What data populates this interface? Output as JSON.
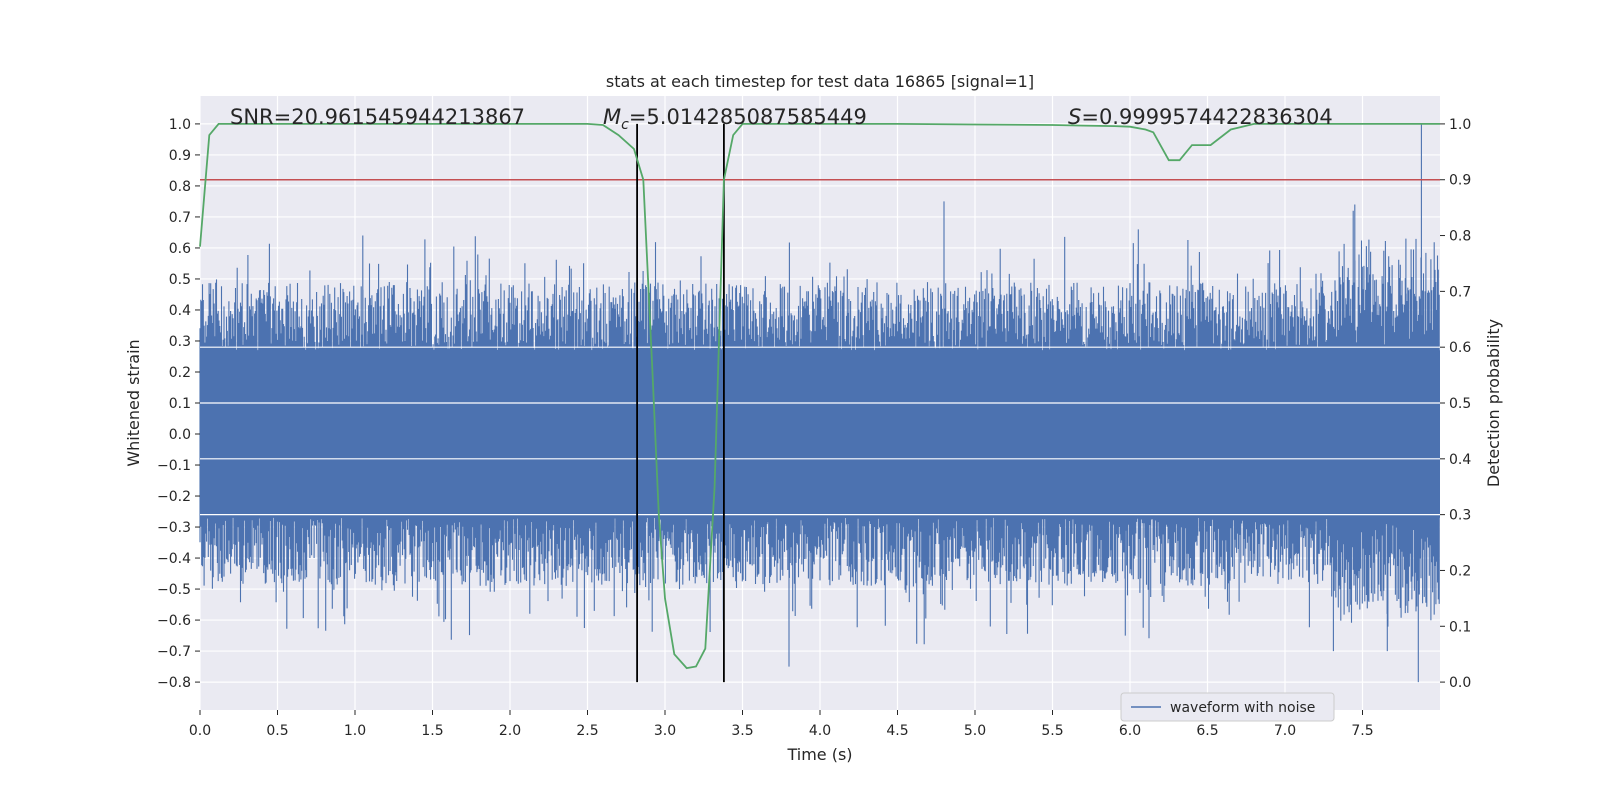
{
  "chart_data": {
    "type": "line",
    "title": "stats at each timestep for test data 16865 [signal=1]",
    "xlabel": "Time (s)",
    "ylabel": "Whitened strain",
    "y2label": "Detection probability",
    "xlim": [
      0.0,
      8.0
    ],
    "ylim": [
      -0.89,
      1.09
    ],
    "y2lim": [
      -0.05,
      1.05
    ],
    "x_ticks": [
      "0.0",
      "0.5",
      "1.0",
      "1.5",
      "2.0",
      "2.5",
      "3.0",
      "3.5",
      "4.0",
      "4.5",
      "5.0",
      "5.5",
      "6.0",
      "6.5",
      "7.0",
      "7.5"
    ],
    "y_ticks": [
      "1.0",
      "0.9",
      "0.8",
      "0.7",
      "0.6",
      "0.5",
      "0.4",
      "0.3",
      "0.2",
      "0.1",
      "0.0",
      "−0.1",
      "−0.2",
      "−0.3",
      "−0.4",
      "−0.5",
      "−0.6",
      "−0.7",
      "−0.8"
    ],
    "y2_ticks": [
      "1.0",
      "0.9",
      "0.8",
      "0.7",
      "0.6",
      "0.5",
      "0.4",
      "0.3",
      "0.2",
      "0.1",
      "0.0"
    ],
    "grid": true,
    "legend_position": "lower-right",
    "annotations": {
      "snr": "SNR=20.961545944213867",
      "mc_symbol": "M",
      "mc_sub": "c",
      "mc_value": "=5.014285087585449",
      "s_symbol": "S",
      "s_value": "=0.9999574422836304"
    },
    "threshold": 0.9,
    "vlines": [
      2.82,
      3.38
    ],
    "series": [
      {
        "name": "waveform with noise",
        "axis": "left",
        "color": "#4c72b0",
        "kind": "noise-envelope",
        "core_range": [
          -0.27,
          0.27
        ],
        "peak_max": 1.0,
        "peak_min": -0.8
      },
      {
        "axis": "right",
        "color": "#55a868",
        "x": [
          0.0,
          0.06,
          0.12,
          0.5,
          1.0,
          1.5,
          2.0,
          2.5,
          2.6,
          2.7,
          2.8,
          2.86,
          2.92,
          2.96,
          3.0,
          3.06,
          3.14,
          3.2,
          3.26,
          3.32,
          3.38,
          3.44,
          3.5,
          3.6,
          4.0,
          4.5,
          5.0,
          5.5,
          5.7,
          5.9,
          6.0,
          6.1,
          6.15,
          6.2,
          6.25,
          6.32,
          6.4,
          6.52,
          6.65,
          6.8,
          7.0,
          7.5,
          7.9,
          8.0
        ],
        "y": [
          0.78,
          0.98,
          1.0,
          1.0,
          1.0,
          1.0,
          1.0,
          1.0,
          0.998,
          0.98,
          0.955,
          0.9,
          0.55,
          0.3,
          0.15,
          0.05,
          0.025,
          0.028,
          0.06,
          0.35,
          0.9,
          0.98,
          1.0,
          1.0,
          1.0,
          1.0,
          0.999,
          0.998,
          0.997,
          0.996,
          0.995,
          0.99,
          0.985,
          0.96,
          0.935,
          0.935,
          0.962,
          0.962,
          0.99,
          1.0,
          1.0,
          1.0,
          1.0,
          1.0
        ]
      }
    ],
    "threshold_color": "#c44e52"
  }
}
